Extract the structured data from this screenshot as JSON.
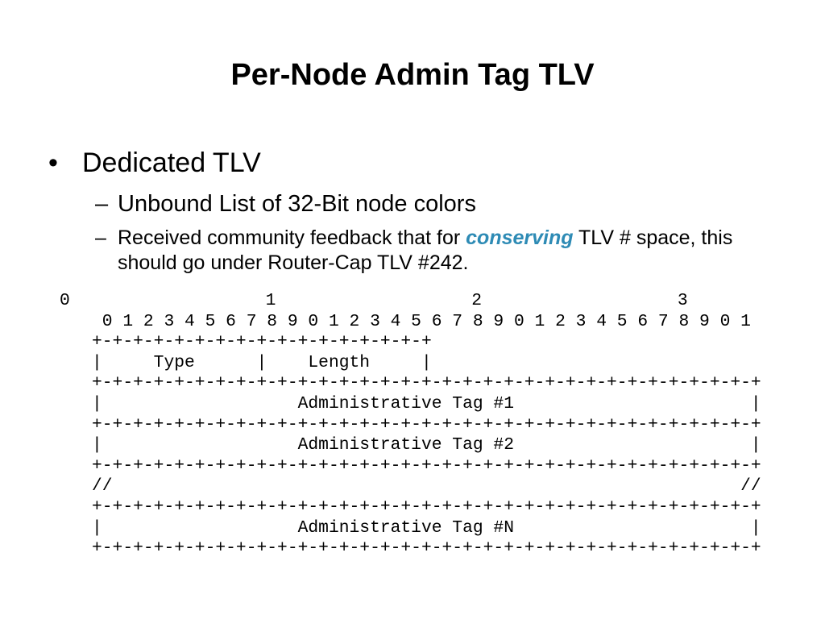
{
  "title": "Per-Node Admin Tag TLV",
  "bullets": [
    {
      "text": "Dedicated TLV",
      "subbullets": [
        {
          "parts": [
            "Unbound List of 32-Bit node colors"
          ]
        },
        {
          "parts": [
            "Received community feedback that for ",
            "conserving",
            " TLV # space, this should go under Router-Cap TLV #242."
          ]
        }
      ]
    }
  ],
  "diagram": {
    "header": "0                   1                   2                   3",
    "lines": [
      " 0 1 2 3 4 5 6 7 8 9 0 1 2 3 4 5 6 7 8 9 0 1 2 3 4 5 6 7 8 9 0 1",
      "+-+-+-+-+-+-+-+-+-+-+-+-+-+-+-+-+",
      "|     Type      |    Length     |",
      "+-+-+-+-+-+-+-+-+-+-+-+-+-+-+-+-+-+-+-+-+-+-+-+-+-+-+-+-+-+-+-+-+",
      "|                   Administrative Tag #1                       |",
      "+-+-+-+-+-+-+-+-+-+-+-+-+-+-+-+-+-+-+-+-+-+-+-+-+-+-+-+-+-+-+-+-+",
      "|                   Administrative Tag #2                       |",
      "+-+-+-+-+-+-+-+-+-+-+-+-+-+-+-+-+-+-+-+-+-+-+-+-+-+-+-+-+-+-+-+-+",
      "//                                                             //",
      "+-+-+-+-+-+-+-+-+-+-+-+-+-+-+-+-+-+-+-+-+-+-+-+-+-+-+-+-+-+-+-+-+",
      "|                   Administrative Tag #N                       |",
      "+-+-+-+-+-+-+-+-+-+-+-+-+-+-+-+-+-+-+-+-+-+-+-+-+-+-+-+-+-+-+-+-+"
    ]
  }
}
